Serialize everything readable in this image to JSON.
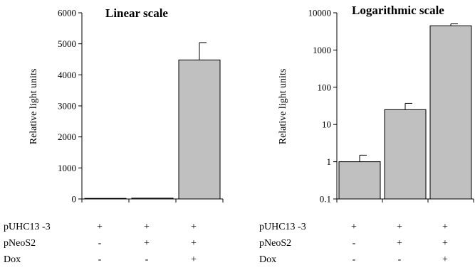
{
  "chart_data": [
    {
      "type": "bar",
      "title": "Linear scale",
      "ylabel": "Relative light units",
      "scale": "linear",
      "ylim": [
        0,
        6000
      ],
      "yticks": [
        "0",
        "1000",
        "2000",
        "3000",
        "4000",
        "5000",
        "6000"
      ],
      "bar_color": "#c0c0c0",
      "values": [
        1,
        25,
        4480
      ],
      "errors": [
        0.5,
        12,
        560
      ]
    },
    {
      "type": "bar",
      "title": "Logarithmic scale",
      "ylabel": "Relative light units",
      "scale": "log",
      "ylim": [
        0.1,
        10000
      ],
      "yticks": [
        "0.1",
        "1",
        "10",
        "100",
        "1000",
        "10000"
      ],
      "bar_color": "#c0c0c0",
      "values": [
        1,
        25,
        4480
      ],
      "errors": [
        0.5,
        12,
        560
      ]
    }
  ],
  "conditions": {
    "rows": [
      {
        "label": "pUHC13 -3",
        "marks": [
          "+",
          "+",
          "+"
        ]
      },
      {
        "label": "pNeoS2",
        "marks": [
          "-",
          "+",
          "+"
        ]
      },
      {
        "label": "Dox",
        "marks": [
          "-",
          "-",
          "+"
        ]
      }
    ]
  }
}
